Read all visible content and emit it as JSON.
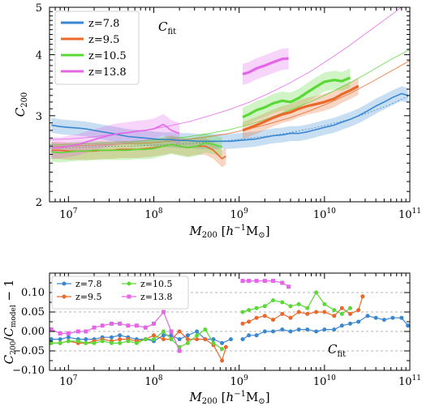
{
  "colors": {
    "z7.8": "#3a87d0",
    "z9.5": "#e8692a",
    "z10.5": "#5ad836",
    "z13.8": "#e466e8"
  },
  "chart_data": [
    {
      "type": "line",
      "id": "top",
      "xscale": "log",
      "yscale": "log",
      "xlim": [
        6000000,
        100000000000
      ],
      "ylim": [
        2,
        5
      ],
      "xlabel": "M_200 [h^-1 M_sun]",
      "ylabel": "C_200",
      "annotation": "C_fit",
      "legend_position": "top-left",
      "xticks": [
        {
          "value": 10000000,
          "base": "10",
          "exp": "7"
        },
        {
          "value": 100000000,
          "base": "10",
          "exp": "8"
        },
        {
          "value": 1000000000,
          "base": "10",
          "exp": "9"
        },
        {
          "value": 10000000000,
          "base": "10",
          "exp": "10"
        },
        {
          "value": 100000000000,
          "base": "10",
          "exp": "11"
        }
      ],
      "yticks": [
        {
          "value": 2,
          "label": "2"
        },
        {
          "value": 3,
          "label": "3"
        },
        {
          "value": 4,
          "label": "4"
        },
        {
          "value": 5,
          "label": "5"
        }
      ],
      "series": [
        {
          "name": "z=7.8",
          "key": "z7.8",
          "x": [
            6300000.0,
            8000000.0,
            10000000.0,
            13000000.0,
            16000000.0,
            20000000.0,
            25000000.0,
            32000000.0,
            40000000.0,
            50000000.0,
            63000000.0,
            80000000.0,
            100000000.0,
            130000000.0,
            160000000.0,
            200000000.0,
            250000000.0,
            320000000.0,
            400000000.0,
            500000000.0,
            630000000.0,
            800000000.0,
            1000000000.0,
            1300000000.0,
            1600000000.0,
            2000000000.0,
            2500000000.0,
            3200000000.0,
            4000000000.0,
            5000000000.0,
            6300000000.0,
            8000000000.0,
            10000000000.0,
            13000000000.0,
            16000000000.0,
            20000000000.0,
            25000000000.0,
            32000000000.0,
            40000000000.0,
            50000000000.0,
            63000000000.0,
            80000000000.0,
            95000000000.0
          ],
          "y": [
            2.87,
            2.85,
            2.84,
            2.83,
            2.82,
            2.8,
            2.78,
            2.76,
            2.74,
            2.72,
            2.71,
            2.7,
            2.69,
            2.68,
            2.68,
            2.67,
            2.67,
            2.66,
            2.66,
            2.66,
            2.66,
            2.66,
            2.67,
            2.68,
            2.69,
            2.71,
            2.73,
            2.74,
            2.76,
            2.76,
            2.78,
            2.81,
            2.84,
            2.87,
            2.91,
            2.95,
            3.0,
            3.07,
            3.14,
            3.2,
            3.27,
            3.33,
            3.3
          ],
          "band": 0.035,
          "fit_x": [
            6000000.0,
            100000000000.0
          ],
          "fit": [
            2.58,
            2.58,
            2.59,
            2.6,
            2.6,
            2.61,
            2.62,
            2.63,
            2.65,
            2.67,
            2.7,
            2.73,
            2.77,
            2.82,
            2.88,
            2.95,
            3.05,
            3.16,
            3.3
          ]
        },
        {
          "name": "z=9.5",
          "key": "z9.5",
          "x": [
            6300000.0,
            8000000.0,
            10000000.0,
            13000000.0,
            16000000.0,
            20000000.0,
            25000000.0,
            32000000.0,
            40000000.0,
            50000000.0,
            63000000.0,
            80000000.0,
            100000000.0,
            130000000.0,
            160000000.0,
            200000000.0,
            250000000.0,
            320000000.0,
            400000000.0,
            500000000.0,
            630000000.0,
            700000000.0
          ],
          "y": [
            2.55,
            2.55,
            2.54,
            2.54,
            2.54,
            2.54,
            2.55,
            2.55,
            2.56,
            2.56,
            2.56,
            2.57,
            2.58,
            2.6,
            2.62,
            2.6,
            2.58,
            2.6,
            2.6,
            2.55,
            2.45,
            2.48
          ],
          "x2": [
            1100000000.0,
            1300000000.0,
            1600000000.0,
            2000000000.0,
            2500000000.0,
            3200000000.0,
            4000000000.0,
            5000000000.0,
            6300000000.0,
            8000000000.0,
            10000000000.0,
            13000000000.0,
            16000000000.0,
            20000000000.0,
            25000000000.0
          ],
          "y2": [
            2.8,
            2.83,
            2.87,
            2.92,
            2.97,
            3.02,
            3.05,
            3.1,
            3.14,
            3.17,
            3.2,
            3.25,
            3.32,
            3.38,
            3.45
          ],
          "band": 0.04,
          "fit_x": [
            6000000.0,
            100000000000.0
          ],
          "fit": [
            2.6,
            2.6,
            2.61,
            2.62,
            2.63,
            2.64,
            2.66,
            2.69,
            2.72,
            2.76,
            2.82,
            2.89,
            2.97,
            3.07,
            3.19,
            3.33,
            3.5,
            3.69,
            3.89
          ]
        },
        {
          "name": "z=10.5",
          "key": "z10.5",
          "x": [
            6300000.0,
            8000000.0,
            10000000.0,
            13000000.0,
            16000000.0,
            20000000.0,
            25000000.0,
            32000000.0,
            40000000.0,
            50000000.0,
            63000000.0,
            80000000.0,
            100000000.0,
            130000000.0,
            160000000.0,
            200000000.0,
            250000000.0,
            320000000.0,
            400000000.0,
            500000000.0,
            630000000.0
          ],
          "y": [
            2.53,
            2.52,
            2.53,
            2.54,
            2.54,
            2.55,
            2.55,
            2.55,
            2.55,
            2.55,
            2.56,
            2.56,
            2.57,
            2.6,
            2.62,
            2.6,
            2.58,
            2.6,
            2.64,
            2.62,
            2.59
          ],
          "x2": [
            1100000000.0,
            1300000000.0,
            1600000000.0,
            2000000000.0,
            2500000000.0,
            3200000000.0,
            4000000000.0,
            5000000000.0,
            6300000000.0,
            8000000000.0,
            10000000000.0,
            13000000000.0,
            16000000000.0,
            20000000000.0
          ],
          "y2": [
            2.98,
            3.02,
            3.08,
            3.12,
            3.18,
            3.22,
            3.2,
            3.26,
            3.35,
            3.44,
            3.52,
            3.55,
            3.53,
            3.59
          ],
          "band": 0.045,
          "fit_x": [
            6000000.0,
            100000000000.0
          ],
          "fit": [
            2.62,
            2.62,
            2.63,
            2.64,
            2.65,
            2.67,
            2.69,
            2.72,
            2.76,
            2.81,
            2.88,
            2.97,
            3.08,
            3.2,
            3.34,
            3.5,
            3.69,
            3.9,
            4.1
          ]
        },
        {
          "name": "z=13.8",
          "key": "z13.8",
          "x": [
            6300000.0,
            8000000.0,
            10000000.0,
            13000000.0,
            16000000.0,
            20000000.0,
            25000000.0,
            32000000.0,
            40000000.0,
            50000000.0,
            63000000.0,
            80000000.0,
            100000000.0,
            130000000.0,
            160000000.0,
            200000000.0
          ],
          "y": [
            2.58,
            2.58,
            2.6,
            2.62,
            2.65,
            2.68,
            2.71,
            2.74,
            2.76,
            2.77,
            2.79,
            2.8,
            2.82,
            2.88,
            2.8,
            2.76
          ],
          "x2": [
            1100000000.0,
            1300000000.0,
            1600000000.0,
            2000000000.0,
            2500000000.0,
            3200000000.0,
            3800000000.0
          ],
          "y2": [
            3.65,
            3.68,
            3.75,
            3.8,
            3.86,
            3.92,
            3.93
          ],
          "band": 0.05,
          "fit_x": [
            6000000.0,
            100000000000.0
          ],
          "fit": [
            2.68,
            2.69,
            2.71,
            2.74,
            2.77,
            2.81,
            2.86,
            2.92,
            3.0,
            3.09,
            3.2,
            3.34,
            3.5,
            3.69,
            3.92,
            4.18,
            4.48,
            4.8,
            5.15
          ]
        }
      ]
    },
    {
      "type": "line",
      "id": "bottom",
      "xscale": "log",
      "xlim": [
        6000000,
        100000000000
      ],
      "ylim": [
        -0.1,
        0.15
      ],
      "xlabel": "M_200 [h^-1 M_sun]",
      "ylabel": "C_200/C_model - 1",
      "annotation": "C_fit",
      "legend_position": "top-left",
      "yticks": [
        {
          "value": -0.1,
          "label": "−0.10"
        },
        {
          "value": -0.05,
          "label": "−0.05"
        },
        {
          "value": 0.0,
          "label": "0.00"
        },
        {
          "value": 0.05,
          "label": "0.05"
        },
        {
          "value": 0.1,
          "label": "0.10"
        }
      ],
      "gridlines": [
        -0.1,
        -0.05,
        0.0,
        0.05,
        0.1
      ],
      "series": [
        {
          "name": "z=7.8",
          "key": "z7.8",
          "marker": "o",
          "x": [
            6300000.0,
            8000000.0,
            10000000.0,
            13000000.0,
            16000000.0,
            20000000.0,
            25000000.0,
            32000000.0,
            40000000.0,
            50000000.0,
            63000000.0,
            80000000.0,
            100000000.0,
            130000000.0,
            160000000.0,
            200000000.0,
            250000000.0,
            320000000.0,
            400000000.0,
            500000000.0,
            630000000.0,
            800000000.0
          ],
          "y": [
            -0.02,
            -0.02,
            -0.015,
            -0.02,
            -0.02,
            -0.02,
            -0.015,
            -0.015,
            -0.01,
            -0.015,
            -0.02,
            -0.02,
            -0.025,
            -0.01,
            -0.01,
            -0.02,
            -0.01,
            0.0,
            -0.02,
            -0.02,
            -0.03,
            -0.02
          ],
          "x2": [
            1100000000.0,
            1300000000.0,
            1600000000.0,
            2000000000.0,
            2500000000.0,
            3200000000.0,
            4000000000.0,
            5000000000.0,
            6300000000.0,
            8000000000.0,
            10000000000.0,
            13000000000.0,
            16000000000.0,
            20000000000.0,
            25000000000.0,
            32000000000.0,
            40000000000.0,
            50000000000.0,
            63000000000.0,
            80000000000.0,
            95000000000.0
          ],
          "y2": [
            -0.02,
            -0.01,
            -0.01,
            0.0,
            0.0,
            0.005,
            0.0,
            0.005,
            0.005,
            0.0,
            0.005,
            0.005,
            0.015,
            0.02,
            0.025,
            0.04,
            0.035,
            0.03,
            0.035,
            0.035,
            0.015
          ]
        },
        {
          "name": "z=9.5",
          "key": "z9.5",
          "marker": "o",
          "x": [
            6300000.0,
            8000000.0,
            10000000.0,
            13000000.0,
            16000000.0,
            20000000.0,
            25000000.0,
            32000000.0,
            40000000.0,
            50000000.0,
            63000000.0,
            80000000.0,
            100000000.0,
            130000000.0,
            160000000.0,
            200000000.0,
            250000000.0,
            320000000.0,
            400000000.0,
            500000000.0,
            630000000.0,
            700000000.0
          ],
          "y": [
            -0.03,
            -0.03,
            -0.025,
            -0.03,
            -0.03,
            -0.025,
            -0.02,
            -0.025,
            -0.02,
            -0.02,
            -0.025,
            -0.02,
            -0.01,
            -0.02,
            -0.02,
            0.0,
            -0.02,
            -0.02,
            -0.02,
            -0.035,
            -0.075,
            -0.04
          ],
          "x2": [
            1100000000.0,
            1300000000.0,
            1600000000.0,
            2000000000.0,
            2500000000.0,
            3200000000.0,
            4000000000.0,
            5000000000.0,
            6300000000.0,
            8000000000.0,
            10000000000.0,
            13000000000.0,
            16000000000.0,
            20000000000.0,
            25000000000.0,
            28000000000.0
          ],
          "y2": [
            0.02,
            0.025,
            0.035,
            0.04,
            0.03,
            0.045,
            0.035,
            0.05,
            0.045,
            0.05,
            0.05,
            0.04,
            0.06,
            0.045,
            0.055,
            0.09
          ]
        },
        {
          "name": "z=10.5",
          "key": "z10.5",
          "marker": "o",
          "x": [
            6300000.0,
            8000000.0,
            10000000.0,
            13000000.0,
            16000000.0,
            20000000.0,
            25000000.0,
            32000000.0,
            40000000.0,
            50000000.0,
            63000000.0,
            80000000.0,
            100000000.0,
            130000000.0,
            160000000.0,
            200000000.0,
            250000000.0,
            320000000.0,
            400000000.0,
            500000000.0,
            630000000.0
          ],
          "y": [
            -0.03,
            -0.03,
            -0.025,
            -0.025,
            -0.03,
            -0.03,
            -0.025,
            -0.03,
            -0.03,
            -0.025,
            -0.03,
            -0.02,
            -0.02,
            0.0,
            -0.02,
            -0.04,
            -0.03,
            -0.01,
            0.005,
            -0.03,
            -0.045
          ],
          "x2": [
            1100000000.0,
            1300000000.0,
            1600000000.0,
            2000000000.0,
            2500000000.0,
            3200000000.0,
            4000000000.0,
            5000000000.0,
            6300000000.0,
            8000000000.0,
            10000000000.0,
            13000000000.0,
            16000000000.0,
            20000000000.0
          ],
          "y2": [
            0.05,
            0.055,
            0.06,
            0.065,
            0.08,
            0.075,
            0.065,
            0.07,
            0.06,
            0.1,
            0.07,
            0.055,
            0.045,
            0.06
          ]
        },
        {
          "name": "z=13.8",
          "key": "z13.8",
          "marker": "s",
          "x": [
            6300000.0,
            8000000.0,
            10000000.0,
            13000000.0,
            16000000.0,
            20000000.0,
            25000000.0,
            32000000.0,
            40000000.0,
            50000000.0,
            63000000.0,
            80000000.0,
            100000000.0,
            130000000.0,
            160000000.0,
            200000000.0
          ],
          "y": [
            0.005,
            -0.005,
            -0.005,
            0.0,
            0.0,
            0.01,
            0.015,
            0.02,
            0.02,
            0.015,
            0.015,
            0.01,
            0.02,
            0.05,
            0.0,
            -0.05
          ],
          "x2": [
            1100000000.0,
            1300000000.0,
            1600000000.0,
            2000000000.0,
            2500000000.0,
            3200000000.0,
            3800000000.0
          ],
          "y2": [
            0.13,
            0.13,
            0.13,
            0.13,
            0.13,
            0.125,
            0.115
          ]
        }
      ]
    }
  ]
}
